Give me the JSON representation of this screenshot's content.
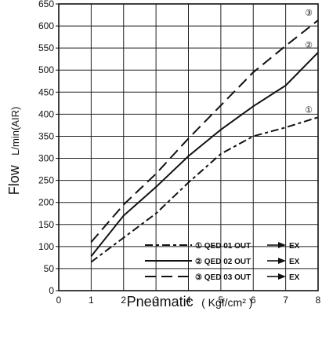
{
  "chart_data": {
    "type": "line",
    "title": "",
    "xlabel": "Pneumatic",
    "xunit": "( Kgf/cm² )",
    "ylabel": "Flow",
    "yunit": "L/min(AIR)",
    "xlim": [
      0,
      8
    ],
    "ylim": [
      0,
      650
    ],
    "xticks": [
      0,
      1,
      2,
      3,
      4,
      5,
      6,
      7,
      8
    ],
    "yticks": [
      0,
      50,
      100,
      150,
      200,
      250,
      300,
      350,
      400,
      450,
      500,
      550,
      600,
      650
    ],
    "grid": true,
    "legend_position": "bottom-right",
    "series": [
      {
        "marker": "①",
        "name": "QED 01  OUT",
        "target": "EX",
        "style": "dash-dot",
        "x": [
          1,
          2,
          3,
          4,
          5,
          6,
          7,
          8
        ],
        "y": [
          65,
          120,
          175,
          245,
          310,
          350,
          370,
          393
        ]
      },
      {
        "marker": "②",
        "name": "QED 02  OUT",
        "target": "EX",
        "style": "solid",
        "x": [
          1,
          2,
          3,
          4,
          5,
          6,
          7,
          8
        ],
        "y": [
          78,
          170,
          235,
          305,
          365,
          418,
          465,
          540
        ]
      },
      {
        "marker": "③",
        "name": "QED 03  OUT",
        "target": "EX",
        "style": "long-dash",
        "x": [
          1,
          2,
          3,
          4,
          5,
          6,
          7,
          8
        ],
        "y": [
          110,
          195,
          265,
          345,
          420,
          495,
          555,
          613
        ]
      }
    ]
  }
}
